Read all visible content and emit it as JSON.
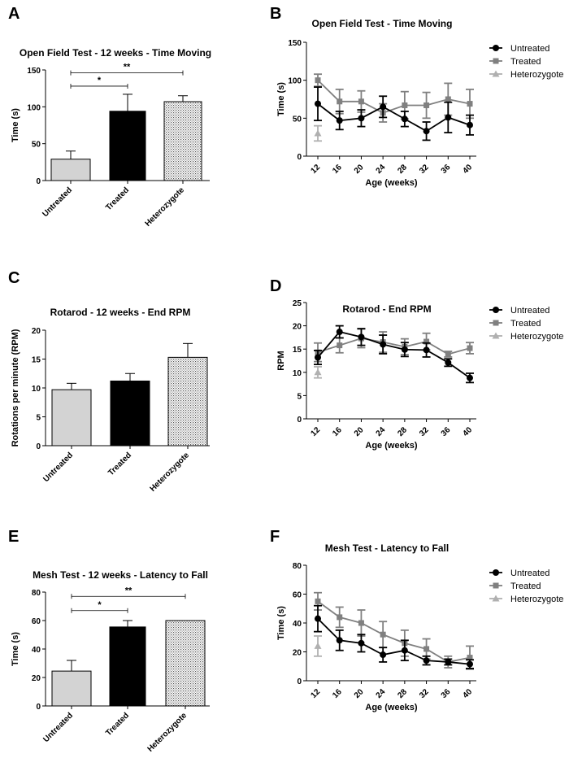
{
  "colors": {
    "untreated": "#000000",
    "treated": "#808080",
    "heterozygote": "#b0b0b0",
    "bar_untreated": "#d3d3d3",
    "bar_treated": "#000000"
  },
  "panel_letters": [
    "A",
    "B",
    "C",
    "D",
    "E",
    "F"
  ],
  "chart_data": [
    {
      "panel": "A",
      "type": "bar",
      "title": "Open Field Test - 12 weeks - Time Moving",
      "ylabel": "Time (s)",
      "xlabel": "",
      "ylim": [
        0,
        150
      ],
      "yticks": [
        0,
        50,
        100,
        150
      ],
      "categories": [
        "Untreated",
        "Treated",
        "Heterozygote"
      ],
      "values": [
        29,
        94,
        107
      ],
      "errors": [
        11,
        23,
        8
      ],
      "fills": [
        "untreated",
        "treated",
        "heterozygote"
      ],
      "significance": [
        {
          "label": "*",
          "from": 0,
          "to": 1,
          "y": 128
        },
        {
          "label": "**",
          "from": 0,
          "to": 2,
          "y": 146
        }
      ]
    },
    {
      "panel": "B",
      "type": "line",
      "title": "Open Field Test - Time Moving",
      "ylabel": "Time (s)",
      "xlabel": "Age (weeks)",
      "ylim": [
        0,
        150
      ],
      "yticks": [
        0,
        50,
        100,
        150
      ],
      "x": [
        12,
        16,
        20,
        24,
        28,
        32,
        36,
        40
      ],
      "series": [
        {
          "name": "Untreated",
          "marker": "circle",
          "values": [
            69,
            47,
            50,
            65,
            49,
            33,
            51,
            41
          ],
          "errors": [
            22,
            12,
            11,
            14,
            10,
            12,
            20,
            13
          ]
        },
        {
          "name": "Treated",
          "marker": "square",
          "values": [
            100,
            72,
            72,
            57,
            67,
            67,
            75,
            69
          ],
          "errors": [
            8,
            16,
            14,
            12,
            18,
            17,
            21,
            19
          ]
        },
        {
          "name": "Heterozygote",
          "marker": "triangle",
          "values": [
            30,
            null,
            null,
            null,
            null,
            null,
            null,
            null
          ],
          "errors": [
            10,
            0,
            0,
            0,
            0,
            0,
            0,
            0
          ]
        }
      ]
    },
    {
      "panel": "C",
      "type": "bar",
      "title": "Rotarod - 12 weeks - End RPM",
      "ylabel": "Rotations per minute (RPM)",
      "xlabel": "",
      "ylim": [
        0,
        20
      ],
      "yticks": [
        0,
        5,
        10,
        15,
        20
      ],
      "categories": [
        "Untreated",
        "Treated",
        "Heterozygote"
      ],
      "values": [
        9.7,
        11.2,
        15.3
      ],
      "errors": [
        1.1,
        1.3,
        2.4
      ],
      "fills": [
        "untreated",
        "treated",
        "heterozygote"
      ],
      "significance": []
    },
    {
      "panel": "D",
      "type": "line",
      "title": "Rotarod - End RPM",
      "ylabel": "RPM",
      "xlabel": "Age (weeks)",
      "ylim": [
        0,
        25
      ],
      "yticks": [
        0,
        5,
        10,
        15,
        20,
        25
      ],
      "x": [
        12,
        16,
        20,
        24,
        28,
        32,
        36,
        40
      ],
      "series": [
        {
          "name": "Untreated",
          "marker": "circle",
          "values": [
            13.2,
            18.7,
            17.6,
            16.0,
            14.9,
            14.8,
            12.1,
            8.8
          ],
          "errors": [
            1.5,
            1.3,
            1.8,
            2.0,
            1.5,
            1.5,
            0.8,
            1.0
          ]
        },
        {
          "name": "Treated",
          "marker": "square",
          "values": [
            14.3,
            15.8,
            17.3,
            16.5,
            15.5,
            16.6,
            13.9,
            15.2
          ],
          "errors": [
            2.0,
            1.6,
            2.0,
            2.2,
            1.7,
            1.8,
            0.6,
            1.2
          ]
        },
        {
          "name": "Heterozygote",
          "marker": "triangle",
          "values": [
            10.0,
            null,
            null,
            null,
            null,
            null,
            null,
            null
          ],
          "errors": [
            1.2,
            0,
            0,
            0,
            0,
            0,
            0,
            0
          ]
        }
      ]
    },
    {
      "panel": "E",
      "type": "bar",
      "title": "Mesh Test - 12 weeks - Latency to Fall",
      "ylabel": "Time (s)",
      "xlabel": "",
      "ylim": [
        0,
        80
      ],
      "yticks": [
        0,
        20,
        40,
        60,
        80
      ],
      "categories": [
        "Untreated",
        "Treated",
        "Heterozygote"
      ],
      "values": [
        24.5,
        55.5,
        60
      ],
      "errors": [
        7.5,
        4.5,
        0
      ],
      "fills": [
        "untreated",
        "treated",
        "heterozygote"
      ],
      "significance": [
        {
          "label": "*",
          "from": 0,
          "to": 1,
          "y": 67
        },
        {
          "label": "**",
          "from": 0,
          "to": 2,
          "y": 77
        }
      ]
    },
    {
      "panel": "F",
      "type": "line",
      "title": "Mesh Test - Latency to Fall",
      "ylabel": "Time (s)",
      "xlabel": "Age (weeks)",
      "ylim": [
        0,
        80
      ],
      "yticks": [
        0,
        20,
        40,
        60,
        80
      ],
      "x": [
        12,
        16,
        20,
        24,
        28,
        32,
        36,
        40
      ],
      "series": [
        {
          "name": "Untreated",
          "marker": "circle",
          "values": [
            43,
            28,
            26,
            18,
            21,
            14,
            13,
            11.5
          ],
          "errors": [
            9,
            7,
            6,
            5,
            7,
            3,
            2,
            3
          ]
        },
        {
          "name": "Treated",
          "marker": "square",
          "values": [
            55,
            44,
            40,
            32,
            26,
            22,
            13,
            16
          ],
          "errors": [
            6,
            7,
            9,
            9,
            9,
            7,
            4,
            8
          ]
        },
        {
          "name": "Heterozygote",
          "marker": "triangle",
          "values": [
            24,
            null,
            null,
            null,
            null,
            null,
            null,
            null
          ],
          "errors": [
            7,
            0,
            0,
            0,
            0,
            0,
            0,
            0
          ]
        }
      ]
    }
  ]
}
